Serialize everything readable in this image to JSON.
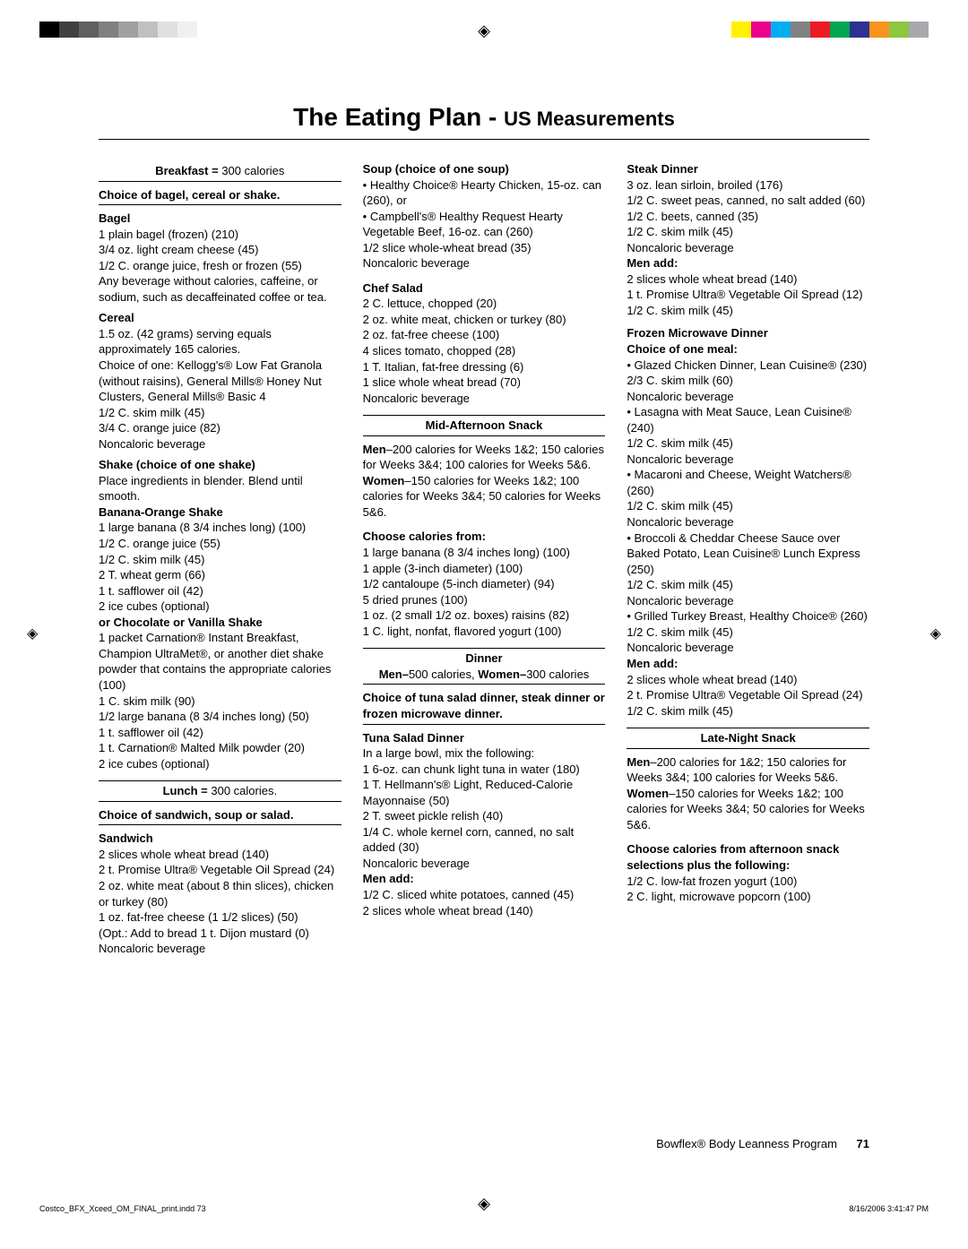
{
  "title_main": "The Eating Plan - ",
  "title_sub": "US Measurements",
  "color_bars_left": [
    "#000000",
    "#404040",
    "#606060",
    "#808080",
    "#a0a0a0",
    "#c0c0c0",
    "#e0e0e0",
    "#f0f0f0",
    "#ffffff"
  ],
  "color_bars_right": [
    "#fff200",
    "#ec008c",
    "#00aeef",
    "#808285",
    "#ed1c24",
    "#00a651",
    "#2e3192",
    "#f7941d",
    "#8dc63f",
    "#a7a9ac"
  ],
  "col1": {
    "breakfast_heading": "Breakfast = ",
    "breakfast_cal": "300 calories",
    "breakfast_choice": "Choice of bagel, cereal or shake.",
    "bagel_h": "Bagel",
    "bagel_lines": [
      "1 plain bagel (frozen) (210)",
      "3/4 oz. light cream cheese (45)",
      "1/2 C. orange juice, fresh or frozen (55)",
      "Any beverage without calories, caffeine, or sodium, such as decaffeinated coffee or tea."
    ],
    "cereal_h": "Cereal",
    "cereal_lines": [
      "1.5 oz. (42 grams) serving equals approximately 165 calories.",
      "Choice of one: Kellogg's® Low Fat Granola (without raisins), General Mills® Honey Nut Clusters, General Mills® Basic 4",
      "1/2 C. skim milk (45)",
      "3/4 C. orange juice (82)",
      "Noncaloric beverage"
    ],
    "shake_h": "Shake (choice of one shake)",
    "shake_intro": "Place ingredients in blender. Blend until smooth.",
    "banana_h": "Banana-Orange Shake",
    "banana_lines": [
      "1 large banana (8 3/4 inches long) (100)",
      "1/2 C. orange juice (55)",
      "1/2 C. skim milk (45)",
      "2 T. wheat germ (66)",
      "1 t. safflower oil (42)",
      "2 ice cubes (optional)"
    ],
    "choc_h": "or Chocolate or Vanilla Shake",
    "choc_lines": [
      "1 packet Carnation® Instant Breakfast, Champion UltraMet®, or another diet shake powder that contains the appropriate calories (100)",
      "1 C. skim milk (90)",
      "1/2 large banana (8 3/4 inches long) (50)",
      "1 t. safflower oil (42)",
      "1 t. Carnation® Malted Milk powder (20)",
      "2 ice cubes (optional)"
    ],
    "lunch_heading": "Lunch = ",
    "lunch_cal": "300 calories.",
    "lunch_choice": "Choice of sandwich, soup or salad.",
    "sandwich_h": "Sandwich",
    "sandwich_lines": [
      "2 slices whole wheat bread (140)",
      "2 t. Promise Ultra® Vegetable Oil Spread (24)",
      "2 oz. white meat (about 8 thin slices), chicken or turkey (80)",
      "1 oz. fat-free cheese (1 1/2 slices) (50)",
      "(Opt.: Add to bread 1 t. Dijon mustard (0)",
      "Noncaloric beverage"
    ]
  },
  "col2": {
    "soup_h": "Soup (choice of one soup)",
    "soup_lines": [
      "• Healthy Choice® Hearty Chicken, 15-oz. can (260), or",
      "• Campbell's® Healthy Request Hearty Vegetable Beef, 16-oz. can (260)",
      "1/2 slice whole-wheat bread (35)",
      "Noncaloric beverage"
    ],
    "salad_h": "Chef Salad",
    "salad_lines": [
      "2 C. lettuce, chopped (20)",
      "2 oz. white meat, chicken or turkey (80)",
      "2 oz. fat-free cheese (100)",
      "4 slices tomato, chopped (28)",
      "1 T. Italian, fat-free dressing (6)",
      "1 slice whole wheat bread (70)",
      "Noncaloric beverage"
    ],
    "midaft_heading": "Mid-Afternoon Snack",
    "midaft_men_label": "Men",
    "midaft_men": "–200 calories for Weeks 1&2; 150 calories for Weeks 3&4; 100 calories for Weeks 5&6.",
    "midaft_women_label": "Women",
    "midaft_women": "–150 calories for Weeks 1&2; 100 calories for Weeks 3&4; 50 calories for Weeks 5&6.",
    "choose_h": "Choose calories from:",
    "choose_lines": [
      "1 large banana (8 3/4 inches long) (100)",
      "1 apple (3-inch diameter) (100)",
      "1/2 cantaloupe (5-inch diameter) (94)",
      "5 dried prunes (100)",
      "1 oz. (2 small 1/2 oz. boxes) raisins (82)",
      "1 C. light, nonfat, flavored yogurt (100)"
    ],
    "dinner_heading": "Dinner",
    "dinner_sub_men": "Men–",
    "dinner_sub_men_cal": "500 calories, ",
    "dinner_sub_women": "Women–",
    "dinner_sub_women_cal": "300 calories",
    "dinner_choice": "Choice of tuna salad dinner, steak dinner or frozen microwave dinner.",
    "tuna_h": "Tuna Salad Dinner",
    "tuna_lines": [
      "In a large bowl, mix the following:",
      "1 6-oz. can chunk light tuna in water (180)",
      "1 T. Hellmann's® Light, Reduced-Calorie Mayonnaise (50)",
      "2 T. sweet pickle relish (40)",
      "1/4 C. whole kernel corn, canned, no salt added (30)",
      "Noncaloric beverage"
    ],
    "tuna_men_h": "Men add:",
    "tuna_men_lines": [
      "1/2 C. sliced white potatoes, canned (45)",
      "2 slices whole wheat bread (140)"
    ]
  },
  "col3": {
    "steak_h": "Steak Dinner",
    "steak_lines": [
      "3 oz. lean sirloin, broiled (176)",
      "1/2 C. sweet peas, canned, no salt added (60)",
      "1/2 C. beets, canned (35)",
      "1/2 C. skim milk (45)",
      "Noncaloric beverage"
    ],
    "steak_men_h": "Men add:",
    "steak_men_lines": [
      "2 slices whole wheat bread (140)",
      "1 t. Promise Ultra® Vegetable Oil Spread (12)",
      "1/2 C. skim milk (45)"
    ],
    "frozen_h": "Frozen Microwave Dinner",
    "frozen_choice": "Choice of one meal:",
    "frozen_lines": [
      "• Glazed Chicken Dinner, Lean Cuisine® (230)",
      "2/3 C. skim milk (60)",
      "Noncaloric beverage",
      "• Lasagna with Meat Sauce, Lean Cuisine® (240)",
      " 1/2 C. skim milk (45)",
      "Noncaloric beverage",
      "• Macaroni and Cheese, Weight Watchers® (260)",
      " 1/2 C. skim milk (45)",
      "Noncaloric beverage",
      "• Broccoli & Cheddar Cheese Sauce over Baked Potato, Lean Cuisine® Lunch Express (250)",
      " 1/2 C. skim milk (45)",
      "Noncaloric beverage",
      "• Grilled Turkey Breast, Healthy Choice® (260)",
      " 1/2 C. skim milk (45)",
      "Noncaloric beverage"
    ],
    "frozen_men_h": "Men add:",
    "frozen_men_lines": [
      "2 slices whole wheat bread (140)",
      "2 t. Promise Ultra® Vegetable Oil Spread (24)",
      "1/2 C. skim milk (45)"
    ],
    "late_heading": "Late-Night Snack",
    "late_men_label": "Men",
    "late_men": "–200 calories for 1&2; 150 calories for Weeks 3&4; 100 calories for Weeks 5&6.",
    "late_women_label": "Women",
    "late_women": "–150 calories for Weeks 1&2; 100 calories for Weeks 3&4; 50 calories for Weeks 5&6.",
    "late_choose_h": "Choose calories from afternoon snack selections plus the following:",
    "late_choose_lines": [
      "1/2 C. low-fat frozen yogurt (100)",
      "2 C. light, microwave popcorn (100)"
    ]
  },
  "footer_text": "Bowflex® Body Leanness Program",
  "footer_page": "71",
  "print_file": "Costco_BFX_Xceed_OM_FINAL_print.indd   73",
  "print_date": "8/16/2006   3:41:47 PM"
}
